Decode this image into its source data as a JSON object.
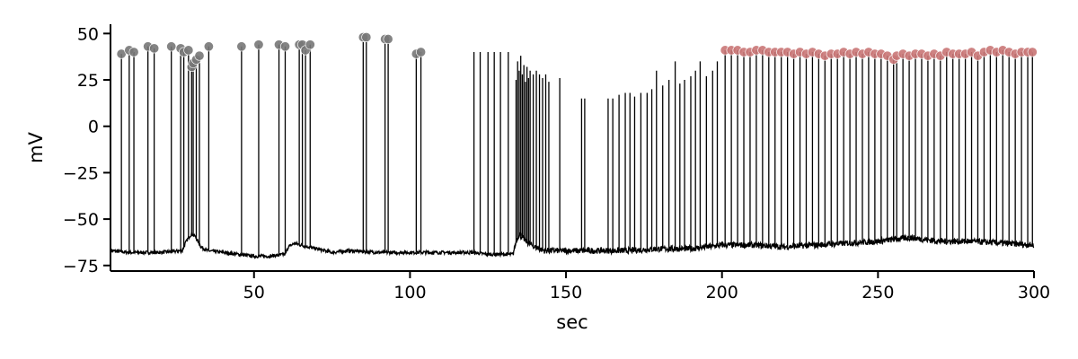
{
  "chart_data": {
    "type": "line",
    "title": "",
    "xlabel": "sec",
    "ylabel": "mV",
    "xlim": [
      4,
      300
    ],
    "ylim": [
      -78,
      55
    ],
    "xticks": [
      50,
      100,
      150,
      200,
      250,
      300
    ],
    "xtick_labels": [
      "50",
      "100",
      "150",
      "200",
      "250",
      "300"
    ],
    "yticks": [
      -75,
      -50,
      -25,
      0,
      25,
      50
    ],
    "ytick_labels": [
      "−75",
      "−50",
      "−25",
      "0",
      "25",
      "50"
    ],
    "grid": false,
    "legend": "none",
    "colors": {
      "trace": "#000000",
      "peak_early": "#777777",
      "peak_late": "#c97676"
    },
    "baseline": {
      "x": [
        4,
        10,
        20,
        27,
        28,
        29,
        30,
        31,
        32,
        33,
        35,
        40,
        45,
        50,
        55,
        60,
        61,
        63,
        65,
        70,
        75,
        80,
        90,
        100,
        110,
        120,
        125,
        130,
        133,
        134,
        135,
        136,
        138,
        140,
        143,
        147,
        150,
        155,
        160,
        170,
        180,
        190,
        200,
        210,
        220,
        230,
        240,
        250,
        255,
        260,
        265,
        270,
        280,
        290,
        300
      ],
      "y": [
        -67,
        -68,
        -68,
        -67,
        -63,
        -60,
        -58,
        -59,
        -62,
        -65,
        -67,
        -68,
        -69,
        -70,
        -70,
        -69,
        -65,
        -63,
        -64,
        -66,
        -68,
        -67,
        -68,
        -68,
        -68,
        -68,
        -69,
        -69,
        -69,
        -62,
        -58,
        -60,
        -63,
        -65,
        -67,
        -67,
        -67,
        -67,
        -67,
        -67,
        -66,
        -66,
        -64,
        -64,
        -65,
        -64,
        -63,
        -62,
        -61,
        -60,
        -61,
        -62,
        -62,
        -63,
        -64
      ]
    },
    "spikes_detected_early": {
      "name": "",
      "x": [
        7.5,
        10,
        11.5,
        16,
        18,
        23.5,
        26.5,
        27.5,
        29,
        30,
        30.5,
        31.5,
        32.5,
        35.5,
        46,
        51.5,
        58,
        60,
        64.5,
        65.5,
        66.5,
        68,
        85,
        86,
        92,
        93,
        102,
        103.5
      ],
      "y": [
        39,
        41,
        40,
        43,
        42,
        43,
        42,
        40,
        41,
        32,
        34,
        36,
        38,
        43,
        43,
        44,
        44,
        43,
        44,
        44,
        41,
        44,
        48,
        48,
        47,
        47,
        39,
        40
      ]
    },
    "spikes_undetected": {
      "x": [
        120.5,
        122.5,
        125,
        127,
        129,
        131.5,
        134,
        134.5,
        135,
        135.5,
        136,
        136.5,
        137,
        137.5,
        138,
        138.5,
        139.5,
        140.5,
        141.5,
        142.5,
        143.5,
        144.5,
        148,
        155,
        156,
        163.5,
        165,
        167,
        169,
        170.5,
        172,
        174,
        176,
        177.5,
        179,
        181,
        183,
        185,
        186.5,
        188,
        190,
        191.5,
        193,
        195,
        197,
        198.5
      ],
      "y": [
        40,
        40,
        40,
        40,
        40,
        40,
        25,
        35,
        30,
        38,
        28,
        33,
        24,
        32,
        26,
        30,
        28,
        30,
        28,
        26,
        28,
        24,
        26,
        15,
        15,
        15,
        15,
        17,
        18,
        18,
        16,
        18,
        18,
        20,
        30,
        22,
        25,
        35,
        23,
        25,
        27,
        30,
        35,
        27,
        30,
        35
      ]
    },
    "spikes_detected_late": {
      "name": "",
      "x": [
        201,
        203,
        205,
        207,
        209,
        211,
        213,
        215,
        217,
        219,
        221,
        223,
        225,
        227,
        229,
        231,
        233,
        235,
        237,
        239,
        241,
        243,
        245,
        247,
        249,
        251,
        253,
        255,
        256,
        258,
        260,
        262,
        264,
        266,
        268,
        270,
        272,
        274,
        276,
        278,
        280,
        282,
        284,
        286,
        288,
        290,
        292,
        294,
        296,
        298,
        299.5
      ],
      "y": [
        41,
        41,
        41,
        40,
        40,
        41,
        41,
        40,
        40,
        40,
        40,
        39,
        40,
        39,
        40,
        39,
        38,
        39,
        39,
        40,
        39,
        40,
        39,
        40,
        39,
        39,
        38,
        36,
        38,
        39,
        38,
        39,
        39,
        38,
        39,
        38,
        40,
        39,
        39,
        39,
        40,
        38,
        40,
        41,
        40,
        41,
        40,
        39,
        40,
        40,
        40
      ]
    }
  }
}
